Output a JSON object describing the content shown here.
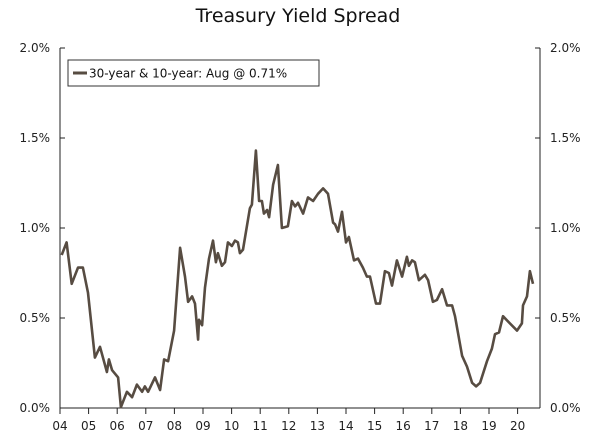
{
  "chart_data": {
    "type": "line",
    "title": "Treasury Yield Spread",
    "xlabel": "",
    "ylabel": "",
    "xlim": [
      2004,
      2020.8
    ],
    "ylim": [
      0,
      2.0
    ],
    "x_ticks": [
      2004,
      2005,
      2006,
      2007,
      2008,
      2009,
      2010,
      2011,
      2012,
      2013,
      2014,
      2015,
      2016,
      2017,
      2018,
      2019,
      2020
    ],
    "x_tick_labels": [
      "04",
      "05",
      "06",
      "07",
      "08",
      "09",
      "10",
      "11",
      "12",
      "13",
      "14",
      "15",
      "16",
      "17",
      "18",
      "19",
      "20"
    ],
    "y_ticks": [
      0,
      0.5,
      1.0,
      1.5,
      2.0
    ],
    "y_tick_labels": [
      "0.0%",
      "0.5%",
      "1.0%",
      "1.5%",
      "2.0%"
    ],
    "grid": false,
    "legend_position": "top-left",
    "series": [
      {
        "name": "30-year & 10-year: Aug @ 0.71%",
        "color": "#574c42",
        "x": [
          2004.06,
          2004.23,
          2004.41,
          2004.63,
          2004.8,
          2004.98,
          2005.22,
          2005.4,
          2005.64,
          2005.71,
          2005.82,
          2006.03,
          2006.13,
          2006.34,
          2006.52,
          2006.69,
          2006.87,
          2006.97,
          2007.08,
          2007.32,
          2007.5,
          2007.64,
          2007.78,
          2007.99,
          2008.2,
          2008.37,
          2008.48,
          2008.62,
          2008.72,
          2008.83,
          2008.86,
          2008.97,
          2009.07,
          2009.21,
          2009.35,
          2009.45,
          2009.52,
          2009.66,
          2009.77,
          2009.87,
          2010.01,
          2010.12,
          2010.22,
          2010.29,
          2010.4,
          2010.64,
          2010.71,
          2010.85,
          2010.96,
          2011.06,
          2011.13,
          2011.24,
          2011.31,
          2011.45,
          2011.62,
          2011.76,
          2011.97,
          2012.11,
          2012.22,
          2012.32,
          2012.5,
          2012.67,
          2012.85,
          2013.02,
          2013.2,
          2013.37,
          2013.55,
          2013.62,
          2013.72,
          2013.86,
          2014.0,
          2014.1,
          2014.28,
          2014.42,
          2014.59,
          2014.73,
          2014.84,
          2015.05,
          2015.19,
          2015.36,
          2015.5,
          2015.61,
          2015.78,
          2015.96,
          2016.13,
          2016.2,
          2016.31,
          2016.41,
          2016.55,
          2016.76,
          2016.87,
          2017.04,
          2017.18,
          2017.36,
          2017.53,
          2017.71,
          2017.81,
          2018.06,
          2018.23,
          2018.41,
          2018.55,
          2018.69,
          2018.93,
          2019.1,
          2019.21,
          2019.35,
          2019.49,
          2019.73,
          2019.98,
          2020.15,
          2020.19,
          2020.33,
          2020.43,
          2020.54
        ],
        "values": [
          0.85,
          0.92,
          0.69,
          0.78,
          0.78,
          0.64,
          0.28,
          0.34,
          0.2,
          0.27,
          0.21,
          0.17,
          0.005,
          0.09,
          0.06,
          0.13,
          0.09,
          0.12,
          0.09,
          0.17,
          0.1,
          0.27,
          0.26,
          0.43,
          0.89,
          0.73,
          0.59,
          0.62,
          0.58,
          0.38,
          0.49,
          0.46,
          0.67,
          0.83,
          0.93,
          0.81,
          0.86,
          0.79,
          0.81,
          0.92,
          0.9,
          0.93,
          0.92,
          0.86,
          0.88,
          1.11,
          1.13,
          1.43,
          1.15,
          1.15,
          1.08,
          1.1,
          1.06,
          1.24,
          1.35,
          1.0,
          1.01,
          1.15,
          1.12,
          1.14,
          1.08,
          1.17,
          1.15,
          1.19,
          1.22,
          1.19,
          1.03,
          1.02,
          0.98,
          1.09,
          0.92,
          0.95,
          0.82,
          0.83,
          0.78,
          0.73,
          0.73,
          0.58,
          0.58,
          0.76,
          0.75,
          0.68,
          0.82,
          0.73,
          0.84,
          0.79,
          0.82,
          0.81,
          0.71,
          0.74,
          0.71,
          0.59,
          0.6,
          0.66,
          0.57,
          0.57,
          0.51,
          0.29,
          0.23,
          0.14,
          0.12,
          0.14,
          0.26,
          0.33,
          0.41,
          0.42,
          0.51,
          0.47,
          0.43,
          0.47,
          0.57,
          0.62,
          0.76,
          0.69
        ]
      }
    ]
  }
}
